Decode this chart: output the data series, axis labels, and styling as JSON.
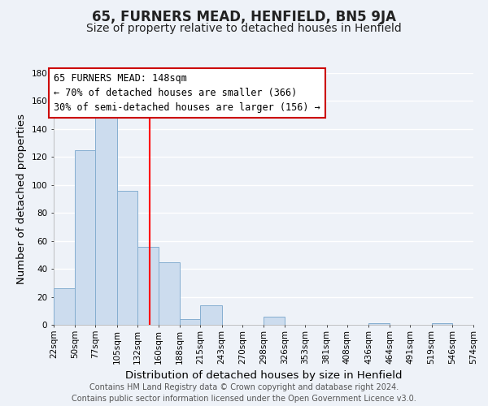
{
  "title": "65, FURNERS MEAD, HENFIELD, BN5 9JA",
  "subtitle": "Size of property relative to detached houses in Henfield",
  "xlabel": "Distribution of detached houses by size in Henfield",
  "ylabel": "Number of detached properties",
  "footer_line1": "Contains HM Land Registry data © Crown copyright and database right 2024.",
  "footer_line2": "Contains public sector information licensed under the Open Government Licence v3.0.",
  "bin_edges": [
    22,
    50,
    77,
    105,
    132,
    160,
    188,
    215,
    243,
    270,
    298,
    326,
    353,
    381,
    408,
    436,
    464,
    491,
    519,
    546,
    574
  ],
  "bar_heights": [
    26,
    125,
    148,
    96,
    56,
    45,
    4,
    14,
    0,
    0,
    6,
    0,
    0,
    0,
    0,
    1,
    0,
    0,
    1,
    0
  ],
  "bar_color": "#ccdcee",
  "bar_edge_color": "#85aed0",
  "bar_edge_width": 0.7,
  "red_line_x": 148,
  "annotation_title": "65 FURNERS MEAD: 148sqm",
  "annotation_line1": "← 70% of detached houses are smaller (366)",
  "annotation_line2": "30% of semi-detached houses are larger (156) →",
  "annotation_box_color": "#ffffff",
  "annotation_box_edge_color": "#cc0000",
  "annotation_fontsize": 8.5,
  "tick_labels": [
    "22sqm",
    "50sqm",
    "77sqm",
    "105sqm",
    "132sqm",
    "160sqm",
    "188sqm",
    "215sqm",
    "243sqm",
    "270sqm",
    "298sqm",
    "326sqm",
    "353sqm",
    "381sqm",
    "408sqm",
    "436sqm",
    "464sqm",
    "491sqm",
    "519sqm",
    "546sqm",
    "574sqm"
  ],
  "ylim": [
    0,
    180
  ],
  "yticks": [
    0,
    20,
    40,
    60,
    80,
    100,
    120,
    140,
    160,
    180
  ],
  "background_color": "#eef2f8",
  "plot_bg_color": "#eef2f8",
  "grid_color": "#ffffff",
  "title_fontsize": 12,
  "subtitle_fontsize": 10,
  "axis_label_fontsize": 9.5,
  "tick_fontsize": 7.5,
  "footer_fontsize": 7
}
